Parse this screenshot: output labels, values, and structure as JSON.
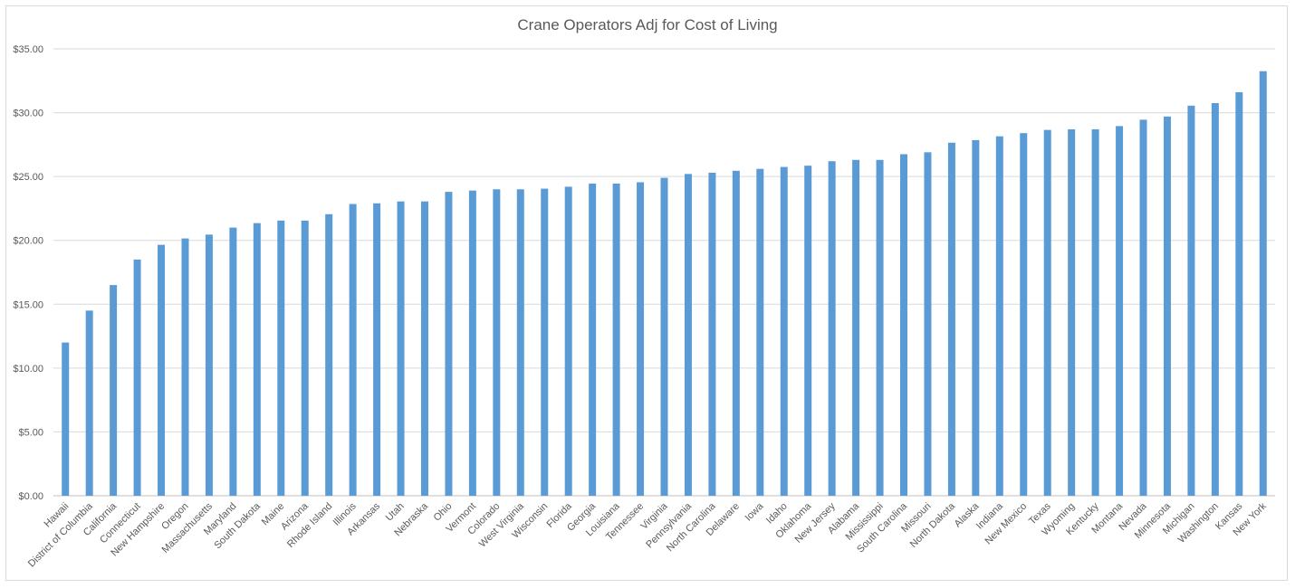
{
  "chart_data": {
    "type": "bar",
    "title": "Crane Operators Adj for Cost of Living",
    "xlabel": "",
    "ylabel": "",
    "ylim": [
      0,
      35
    ],
    "y_ticks": [
      "$0.00",
      "$5.00",
      "$10.00",
      "$15.00",
      "$20.00",
      "$25.00",
      "$30.00",
      "$35.00"
    ],
    "grid": true,
    "legend": "none",
    "bar_color": "#5b9bd5",
    "categories": [
      "Hawaii",
      "District of Columbia",
      "California",
      "Connecticut",
      "New Hampshire",
      "Oregon",
      "Massachusetts",
      "Maryland",
      "South Dakota",
      "Maine",
      "Arizona",
      "Rhode Island",
      "Illinois",
      "Arkansas",
      "Utah",
      "Nebraska",
      "Ohio",
      "Vermont",
      "Colorado",
      "West Virginia",
      "Wisconsin",
      "Florida",
      "Georgia",
      "Louisiana",
      "Tennessee",
      "Virginia",
      "Pennsylvania",
      "North Carolina",
      "Delaware",
      "Iowa",
      "Idaho",
      "Oklahoma",
      "New Jersey",
      "Alabama",
      "Mississippi",
      "South Carolina",
      "Missouri",
      "North Dakota",
      "Alaska",
      "Indiana",
      "New Mexico",
      "Texas",
      "Wyoming",
      "Kentucky",
      "Montana",
      "Nevada",
      "Minnesota",
      "Michigan",
      "Washington",
      "Kansas",
      "New York"
    ],
    "values": [
      12.0,
      14.5,
      16.5,
      18.5,
      19.65,
      20.15,
      20.45,
      21.0,
      21.35,
      21.55,
      21.55,
      22.05,
      22.85,
      22.9,
      23.05,
      23.05,
      23.8,
      23.9,
      24.0,
      24.0,
      24.05,
      24.2,
      24.45,
      24.45,
      24.55,
      24.9,
      25.2,
      25.3,
      25.45,
      25.6,
      25.75,
      25.85,
      26.2,
      26.3,
      26.3,
      26.75,
      26.9,
      27.65,
      27.85,
      28.15,
      28.4,
      28.65,
      28.7,
      28.7,
      28.95,
      29.45,
      29.7,
      30.55,
      30.75,
      31.6,
      33.25
    ]
  }
}
